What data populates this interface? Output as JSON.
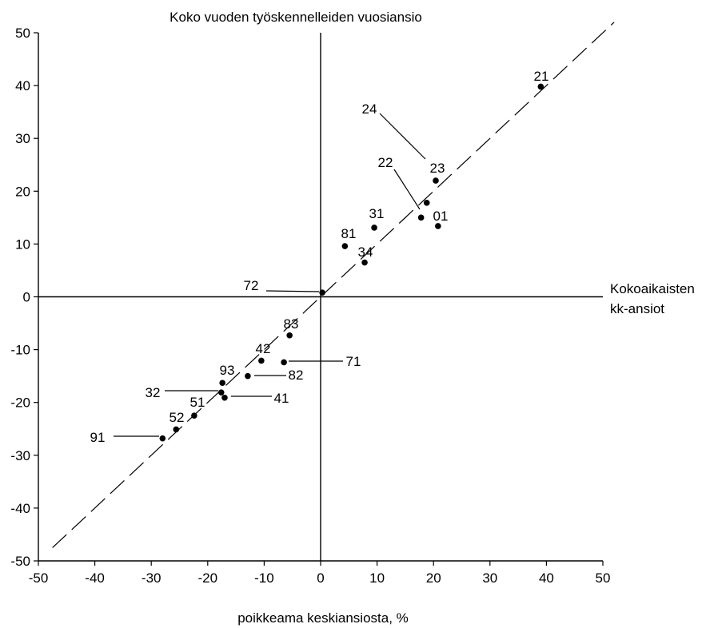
{
  "chart_data": {
    "type": "scatter",
    "title": "Koko vuoden työskennelleiden vuosiansio",
    "right_label_line1": "Kokoaikaisten",
    "right_label_line2": "kk-ansiot",
    "xlabel": "poikkeama keskiansiosta, %",
    "xlim": [
      -50,
      50
    ],
    "ylim": [
      -50,
      50
    ],
    "x_ticks": [
      -50,
      -40,
      -30,
      -20,
      -10,
      0,
      10,
      20,
      30,
      40,
      50
    ],
    "y_ticks": [
      50,
      40,
      30,
      20,
      10,
      0,
      -10,
      -20,
      -30,
      -40,
      -50
    ],
    "diagonal_reference": {
      "style": "dashed",
      "from": [
        -47.5,
        -47.5
      ],
      "to": [
        52,
        52
      ]
    },
    "points": [
      {
        "label": "21",
        "x": 39.0,
        "y": 39.8
      },
      {
        "label": "24",
        "x": 18.8,
        "y": 17.8
      },
      {
        "label": "23",
        "x": 20.4,
        "y": 22.0
      },
      {
        "label": "22",
        "x": 17.8,
        "y": 15.0
      },
      {
        "label": "01",
        "x": 20.8,
        "y": 13.4
      },
      {
        "label": "31",
        "x": 9.5,
        "y": 13.1
      },
      {
        "label": "81",
        "x": 4.3,
        "y": 9.6
      },
      {
        "label": "34",
        "x": 7.8,
        "y": 6.5
      },
      {
        "label": "72",
        "x": 0.3,
        "y": 0.8
      },
      {
        "label": "83",
        "x": -5.5,
        "y": -7.3
      },
      {
        "label": "71",
        "x": -6.5,
        "y": -12.4
      },
      {
        "label": "42",
        "x": -10.5,
        "y": -12.1
      },
      {
        "label": "82",
        "x": -12.9,
        "y": -15.0
      },
      {
        "label": "93",
        "x": -17.4,
        "y": -16.3
      },
      {
        "label": "32",
        "x": -17.6,
        "y": -18.1
      },
      {
        "label": "41",
        "x": -17.0,
        "y": -19.1
      },
      {
        "label": "51",
        "x": -22.4,
        "y": -22.5
      },
      {
        "label": "52",
        "x": -25.6,
        "y": -25.1
      },
      {
        "label": "91",
        "x": -28.0,
        "y": -26.8
      }
    ]
  }
}
